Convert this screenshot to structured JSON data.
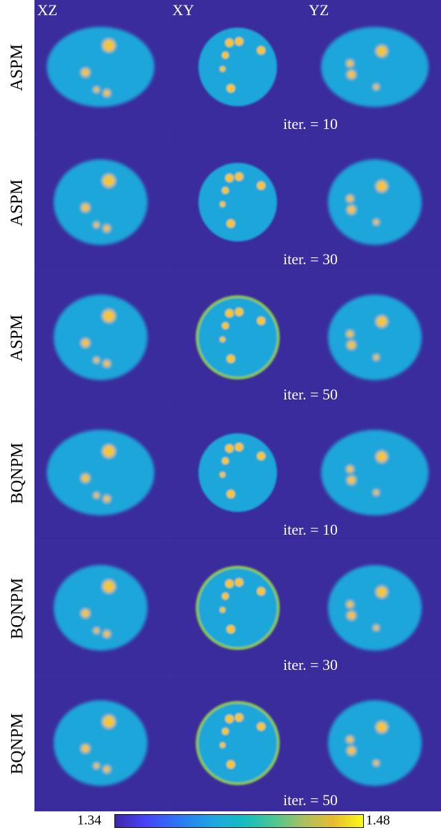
{
  "columns": [
    "XZ",
    "XY",
    "YZ"
  ],
  "rows": [
    {
      "method": "ASPM",
      "iter_label": "iter. = 10"
    },
    {
      "method": "ASPM",
      "iter_label": "iter. = 30"
    },
    {
      "method": "ASPM",
      "iter_label": "iter. = 50"
    },
    {
      "method": "BQNPM",
      "iter_label": "iter. = 10"
    },
    {
      "method": "BQNPM",
      "iter_label": "iter. = 30"
    },
    {
      "method": "BQNPM",
      "iter_label": "iter. = 50"
    }
  ],
  "colorbar": {
    "min_label": "1.34",
    "max_label": "1.48"
  },
  "colors": {
    "background": "#3b2c9e",
    "cell": "#1fa6d9",
    "bright": "#f4c63a",
    "rim": "#8ac64e",
    "divider": "#ffffff"
  }
}
